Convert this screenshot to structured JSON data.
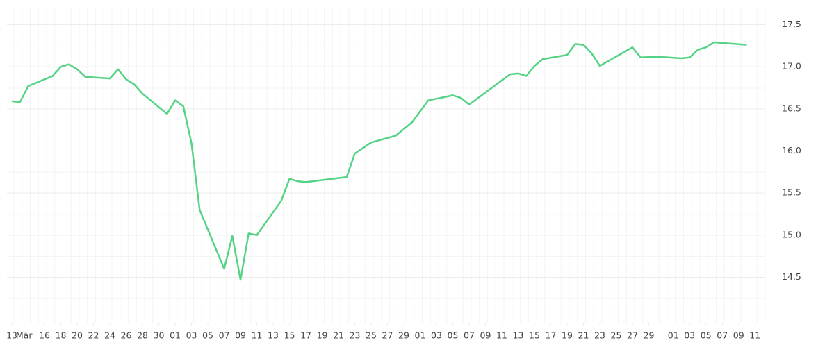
{
  "chart_data": {
    "type": "line",
    "x": [
      0,
      1,
      2,
      5,
      6,
      7,
      8,
      9,
      12,
      13,
      14,
      15,
      16,
      19,
      20,
      21,
      22,
      23,
      26,
      27,
      28,
      29,
      30,
      33,
      34,
      35,
      36,
      41,
      42,
      44,
      47,
      48,
      49,
      51,
      54,
      55,
      56,
      61,
      62,
      63,
      64,
      65,
      68,
      69,
      70,
      71,
      72,
      76,
      77,
      79,
      82,
      83,
      84,
      85,
      86,
      90
    ],
    "series": [
      {
        "color": "#55d384",
        "values": [
          16.59,
          16.58,
          16.77,
          16.89,
          17.0,
          17.03,
          16.97,
          16.88,
          16.86,
          16.97,
          16.85,
          16.79,
          16.68,
          16.44,
          16.6,
          16.53,
          16.09,
          15.3,
          14.6,
          14.99,
          14.47,
          15.02,
          15.0,
          15.41,
          15.67,
          15.64,
          15.63,
          15.69,
          15.97,
          16.1,
          16.18,
          16.26,
          16.34,
          16.6,
          16.66,
          16.63,
          16.55,
          16.91,
          16.92,
          16.89,
          17.01,
          17.09,
          17.14,
          17.27,
          17.26,
          17.16,
          17.01,
          17.23,
          17.11,
          17.12,
          17.1,
          17.11,
          17.2,
          17.23,
          17.29,
          17.26
        ]
      }
    ],
    "xlim": [
      -0.6,
      92.3
    ],
    "xticks": [
      {
        "value": 0,
        "label": "13"
      },
      {
        "value": 1.5,
        "label": "Mär"
      },
      {
        "value": 4,
        "label": "16"
      },
      {
        "value": 6,
        "label": "18"
      },
      {
        "value": 8,
        "label": "20"
      },
      {
        "value": 10,
        "label": "22"
      },
      {
        "value": 12,
        "label": "24"
      },
      {
        "value": 14,
        "label": "26"
      },
      {
        "value": 16,
        "label": "28"
      },
      {
        "value": 18,
        "label": "30"
      },
      {
        "value": 20,
        "label": "01"
      },
      {
        "value": 22,
        "label": "03"
      },
      {
        "value": 24,
        "label": "05"
      },
      {
        "value": 26,
        "label": "07"
      },
      {
        "value": 28,
        "label": "09"
      },
      {
        "value": 30,
        "label": "11"
      },
      {
        "value": 32,
        "label": "13"
      },
      {
        "value": 34,
        "label": "15"
      },
      {
        "value": 36,
        "label": "17"
      },
      {
        "value": 38,
        "label": "19"
      },
      {
        "value": 40,
        "label": "21"
      },
      {
        "value": 42,
        "label": "23"
      },
      {
        "value": 44,
        "label": "25"
      },
      {
        "value": 46,
        "label": "27"
      },
      {
        "value": 48,
        "label": "29"
      },
      {
        "value": 50,
        "label": "01"
      },
      {
        "value": 52,
        "label": "03"
      },
      {
        "value": 54,
        "label": "05"
      },
      {
        "value": 56,
        "label": "07"
      },
      {
        "value": 58,
        "label": "09"
      },
      {
        "value": 60,
        "label": "11"
      },
      {
        "value": 62,
        "label": "13"
      },
      {
        "value": 64,
        "label": "15"
      },
      {
        "value": 66,
        "label": "17"
      },
      {
        "value": 68,
        "label": "19"
      },
      {
        "value": 70,
        "label": "21"
      },
      {
        "value": 72,
        "label": "23"
      },
      {
        "value": 74,
        "label": "25"
      },
      {
        "value": 76,
        "label": "27"
      },
      {
        "value": 78,
        "label": "29"
      },
      {
        "value": 81,
        "label": "01"
      },
      {
        "value": 83,
        "label": "03"
      },
      {
        "value": 85,
        "label": "05"
      },
      {
        "value": 87,
        "label": "07"
      },
      {
        "value": 89,
        "label": "09"
      },
      {
        "value": 91,
        "label": "11"
      }
    ],
    "ylim": [
      13.96,
      17.71
    ],
    "yticks": [
      {
        "value": 14.5,
        "label": "14,5"
      },
      {
        "value": 15,
        "label": "15,0"
      },
      {
        "value": 15.5,
        "label": "15,5"
      },
      {
        "value": 16,
        "label": "16,0"
      },
      {
        "value": 16.5,
        "label": "16,5"
      },
      {
        "value": 17,
        "label": "17,0"
      },
      {
        "value": 17.5,
        "label": "17,5"
      }
    ],
    "grid": true
  }
}
